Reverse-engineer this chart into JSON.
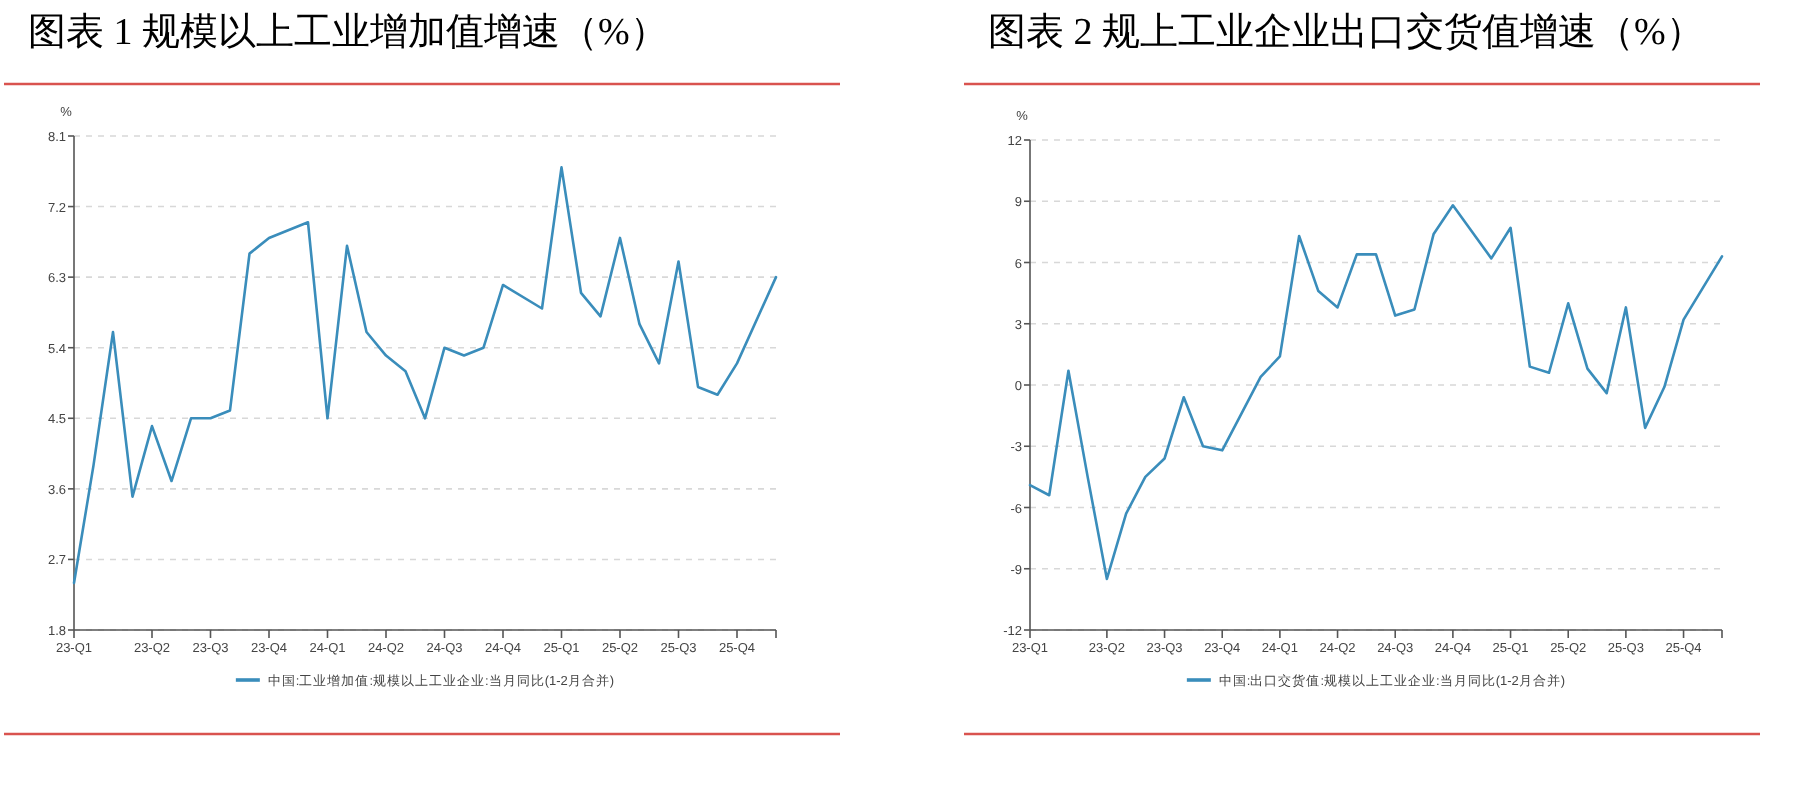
{
  "chart_data": [
    {
      "type": "line",
      "title": "图表 1  规模以上工业增加值增速（%）",
      "ylabel": "%",
      "categories": [
        "23-Q1",
        null,
        null,
        null,
        "23-Q2",
        null,
        null,
        "23-Q3",
        null,
        null,
        "23-Q4",
        null,
        null,
        "24-Q1",
        null,
        null,
        "24-Q2",
        null,
        null,
        "24-Q3",
        null,
        null,
        "24-Q4",
        null,
        null,
        "25-Q1",
        null,
        null,
        "25-Q2",
        null,
        null,
        "25-Q3",
        null,
        null,
        "25-Q4",
        null,
        null
      ],
      "series": [
        {
          "name": "中国:工业增加值:规模以上工业企业:当月同比(1-2月合并)",
          "color": "#3a8dbb",
          "values": [
            2.4,
            3.9,
            5.6,
            3.5,
            4.4,
            3.7,
            4.5,
            4.5,
            4.6,
            6.6,
            6.8,
            null,
            7.0,
            4.5,
            6.7,
            5.6,
            5.3,
            5.1,
            4.5,
            5.4,
            5.3,
            5.4,
            6.2,
            null,
            5.9,
            7.7,
            6.1,
            5.8,
            6.8,
            5.7,
            5.2,
            6.5,
            4.9,
            4.8,
            5.2,
            null,
            6.3
          ]
        }
      ],
      "ylim": [
        1.8,
        8.1
      ],
      "yticks": [
        1.8,
        2.7,
        3.6,
        4.5,
        5.4,
        6.3,
        7.2,
        8.1
      ],
      "grid": "y",
      "legend": "bottom"
    },
    {
      "type": "line",
      "title": "图表 2  规上工业企业出口交货值增速（%）",
      "ylabel": "%",
      "categories": [
        "23-Q1",
        null,
        null,
        null,
        "23-Q2",
        null,
        null,
        "23-Q3",
        null,
        null,
        "23-Q4",
        null,
        null,
        "24-Q1",
        null,
        null,
        "24-Q2",
        null,
        null,
        "24-Q3",
        null,
        null,
        "24-Q4",
        null,
        null,
        "25-Q1",
        null,
        null,
        "25-Q2",
        null,
        null,
        "25-Q3",
        null,
        null,
        "25-Q4",
        null,
        null
      ],
      "series": [
        {
          "name": "中国:出口交货值:规模以上工业企业:当月同比(1-2月合并)",
          "color": "#3a8dbb",
          "values": [
            -4.9,
            -5.4,
            0.7,
            -4.5,
            -9.5,
            -6.3,
            -4.5,
            -3.6,
            -0.6,
            -3.0,
            -3.2,
            null,
            0.4,
            1.4,
            7.3,
            4.6,
            3.8,
            6.4,
            6.4,
            3.4,
            3.7,
            7.4,
            8.8,
            null,
            6.2,
            7.7,
            0.9,
            0.6,
            4.0,
            0.8,
            -0.4,
            3.8,
            -2.1,
            -0.1,
            3.2,
            null,
            6.3
          ]
        }
      ],
      "ylim": [
        -12,
        12
      ],
      "yticks": [
        -12,
        -9,
        -6,
        -3,
        0,
        3,
        6,
        9,
        12
      ],
      "grid": "y",
      "legend": "bottom"
    }
  ]
}
